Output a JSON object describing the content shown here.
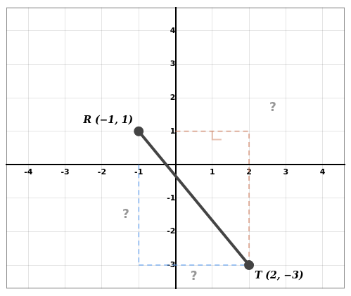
{
  "chart_data": {
    "type": "line",
    "series": [
      {
        "x": [
          -1,
          2
        ],
        "values": [
          1,
          -3
        ],
        "color": "#444444",
        "marker": "circle",
        "line_style": "solid"
      },
      {
        "x": [
          -1,
          -1
        ],
        "values": [
          0,
          -3
        ],
        "color": "#5599ee",
        "line_style": "dashed"
      },
      {
        "x": [
          -1,
          2
        ],
        "values": [
          -3,
          -3
        ],
        "color": "#5599ee",
        "line_style": "dashed"
      },
      {
        "x": [
          0,
          2
        ],
        "values": [
          1,
          1
        ],
        "color": "#cc7755",
        "line_style": "dashed"
      },
      {
        "x": [
          2,
          2
        ],
        "values": [
          -3,
          1
        ],
        "color": "#cc7755",
        "line_style": "dashed"
      },
      {
        "x": [
          1,
          1,
          1.25
        ],
        "values": [
          1,
          0.75,
          0.75
        ],
        "color": "#cc7755",
        "line_style": "solid"
      }
    ],
    "annotations": [
      {
        "text": "R (−1, 1)",
        "x": -1,
        "y": 1
      },
      {
        "text": "T (2, −3)",
        "x": 2,
        "y": -3
      },
      {
        "text": "?",
        "x": -1.35,
        "y": -1.5
      },
      {
        "text": "?",
        "x": 0.5,
        "y": -3.35
      },
      {
        "text": "?",
        "x": 2.65,
        "y": 1.7
      }
    ],
    "xlim": [
      -4.6,
      4.6
    ],
    "ylim": [
      -3.7,
      4.7
    ],
    "xticks": [
      -4,
      -3,
      -2,
      -1,
      1,
      2,
      3,
      4
    ],
    "yticks": [
      -3,
      -2,
      -1,
      1,
      2,
      3,
      4
    ],
    "grid": true
  }
}
